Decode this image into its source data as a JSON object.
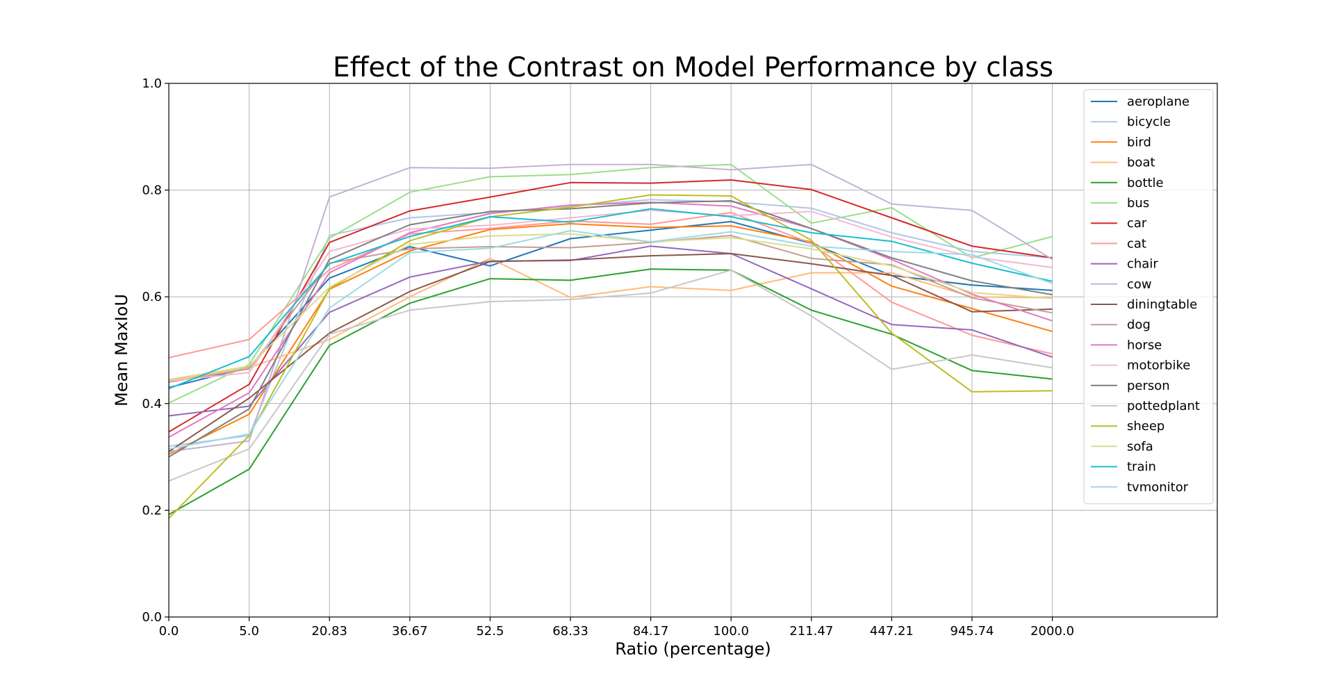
{
  "chart_data": {
    "type": "line",
    "title": "Effect of the Contrast on Model Performance by class",
    "xlabel": "Ratio (percentage)",
    "ylabel": "Mean MaxIoU",
    "x": [
      "0.0",
      "5.0",
      "20.83",
      "36.67",
      "52.5",
      "68.33",
      "84.17",
      "100.0",
      "211.47",
      "447.21",
      "945.74",
      "2000.0"
    ],
    "ylim": [
      0.0,
      1.0
    ],
    "yticks": [
      "0.0",
      "0.2",
      "0.4",
      "0.6",
      "0.8",
      "1.0"
    ],
    "grid": true,
    "legend_position": "top-right",
    "series": [
      {
        "name": "aeroplane",
        "color": "#1f77b4",
        "values": [
          0.43,
          0.468,
          0.635,
          0.694,
          0.658,
          0.709,
          0.725,
          0.741,
          0.7,
          0.64,
          0.622,
          0.612
        ]
      },
      {
        "name": "bicycle",
        "color": "#aec7e8",
        "values": [
          0.32,
          0.34,
          0.715,
          0.748,
          0.758,
          0.77,
          0.782,
          0.778,
          0.766,
          0.72,
          0.685,
          0.673
        ]
      },
      {
        "name": "bird",
        "color": "#ff7f0e",
        "values": [
          0.305,
          0.38,
          0.614,
          0.686,
          0.726,
          0.737,
          0.73,
          0.733,
          0.703,
          0.62,
          0.578,
          0.535
        ]
      },
      {
        "name": "boat",
        "color": "#ffbb78",
        "values": [
          0.443,
          0.467,
          0.52,
          0.6,
          0.672,
          0.599,
          0.619,
          0.612,
          0.645,
          0.645,
          0.6,
          0.598
        ]
      },
      {
        "name": "bottle",
        "color": "#2ca02c",
        "values": [
          0.192,
          0.277,
          0.509,
          0.588,
          0.634,
          0.631,
          0.652,
          0.65,
          0.575,
          0.53,
          0.462,
          0.446
        ]
      },
      {
        "name": "bus",
        "color": "#98df8a",
        "values": [
          0.401,
          0.473,
          0.71,
          0.796,
          0.825,
          0.829,
          0.842,
          0.848,
          0.738,
          0.767,
          0.673,
          0.713
        ]
      },
      {
        "name": "car",
        "color": "#d62728",
        "values": [
          0.347,
          0.436,
          0.702,
          0.761,
          0.787,
          0.814,
          0.813,
          0.819,
          0.801,
          0.748,
          0.695,
          0.673
        ]
      },
      {
        "name": "cat",
        "color": "#ff9896",
        "values": [
          0.486,
          0.52,
          0.651,
          0.718,
          0.728,
          0.742,
          0.736,
          0.758,
          0.7,
          0.59,
          0.528,
          0.493
        ]
      },
      {
        "name": "chair",
        "color": "#9467bd",
        "values": [
          0.377,
          0.395,
          0.571,
          0.637,
          0.667,
          0.668,
          0.695,
          0.681,
          0.615,
          0.548,
          0.538,
          0.487
        ]
      },
      {
        "name": "cow",
        "color": "#c5b0d5",
        "values": [
          0.31,
          0.33,
          0.787,
          0.842,
          0.841,
          0.848,
          0.848,
          0.838,
          0.848,
          0.774,
          0.762,
          0.67
        ]
      },
      {
        "name": "diningtable",
        "color": "#8c564b",
        "values": [
          0.31,
          0.41,
          0.532,
          0.61,
          0.666,
          0.669,
          0.677,
          0.681,
          0.662,
          0.64,
          0.572,
          0.577
        ]
      },
      {
        "name": "dog",
        "color": "#c49c94",
        "values": [
          0.44,
          0.465,
          0.663,
          0.69,
          0.694,
          0.692,
          0.702,
          0.715,
          0.672,
          0.66,
          0.598,
          0.57
        ]
      },
      {
        "name": "horse",
        "color": "#e377c2",
        "values": [
          0.337,
          0.42,
          0.645,
          0.72,
          0.756,
          0.772,
          0.777,
          0.77,
          0.728,
          0.67,
          0.605,
          0.555
        ]
      },
      {
        "name": "motorbike",
        "color": "#f7b6d2",
        "values": [
          0.442,
          0.458,
          0.685,
          0.727,
          0.734,
          0.748,
          0.762,
          0.752,
          0.76,
          0.712,
          0.675,
          0.655
        ]
      },
      {
        "name": "person",
        "color": "#7f7f7f",
        "values": [
          0.3,
          0.39,
          0.67,
          0.735,
          0.76,
          0.765,
          0.776,
          0.78,
          0.728,
          0.673,
          0.63,
          0.604
        ]
      },
      {
        "name": "pottedplant",
        "color": "#c7c7c7",
        "values": [
          0.255,
          0.315,
          0.53,
          0.575,
          0.591,
          0.595,
          0.607,
          0.65,
          0.564,
          0.464,
          0.491,
          0.467
        ]
      },
      {
        "name": "sheep",
        "color": "#bcbd22",
        "values": [
          0.185,
          0.34,
          0.615,
          0.705,
          0.75,
          0.768,
          0.791,
          0.789,
          0.706,
          0.532,
          0.422,
          0.424
        ]
      },
      {
        "name": "sofa",
        "color": "#dbdb8d",
        "values": [
          0.445,
          0.47,
          0.618,
          0.698,
          0.714,
          0.718,
          0.703,
          0.711,
          0.69,
          0.658,
          0.608,
          0.597
        ]
      },
      {
        "name": "train",
        "color": "#17becf",
        "values": [
          0.428,
          0.488,
          0.662,
          0.713,
          0.75,
          0.74,
          0.765,
          0.75,
          0.72,
          0.704,
          0.663,
          0.629
        ]
      },
      {
        "name": "tvmonitor",
        "color": "#9edae5",
        "values": [
          0.315,
          0.343,
          0.579,
          0.683,
          0.691,
          0.724,
          0.703,
          0.722,
          0.695,
          0.685,
          0.679,
          0.625
        ]
      }
    ]
  }
}
